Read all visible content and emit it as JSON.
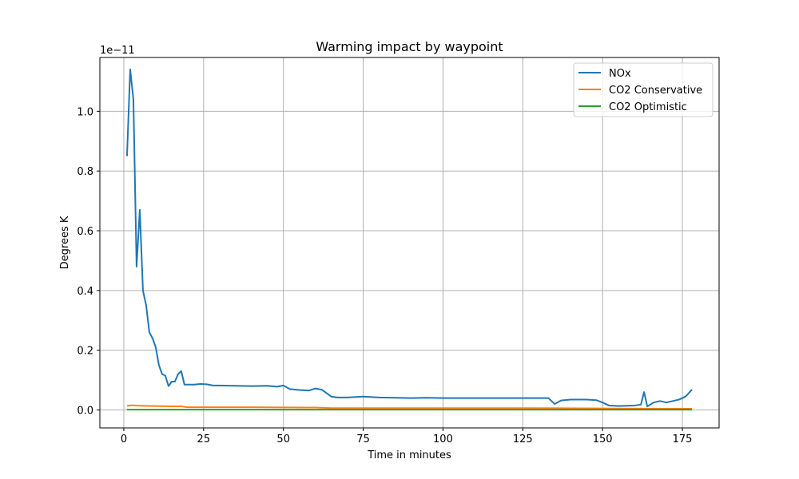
{
  "chart_data": {
    "type": "line",
    "title": "Warming impact by waypoint",
    "xlabel": "Time in minutes",
    "ylabel": "Degrees K",
    "offset_text": "1e−11",
    "xlim": [
      -7.5,
      186.5
    ],
    "ylim": [
      -6e-13,
      1.18e-11
    ],
    "xticks": [
      0,
      25,
      50,
      75,
      100,
      125,
      150,
      175
    ],
    "xtick_labels": [
      "0",
      "25",
      "50",
      "75",
      "100",
      "125",
      "150",
      "175"
    ],
    "yticks": [
      0.0,
      2e-12,
      4e-12,
      6e-12,
      8e-12,
      1e-11
    ],
    "ytick_labels": [
      "0.0",
      "0.2",
      "0.4",
      "0.6",
      "0.8",
      "1.0"
    ],
    "grid": true,
    "legend_position": "top-right",
    "series": [
      {
        "name": "NOx",
        "color": "#1f77b4",
        "x": [
          1,
          2,
          3,
          4,
          5,
          6,
          7,
          8,
          9,
          10,
          11,
          12,
          13,
          14,
          15,
          16,
          17,
          18,
          19,
          20,
          22,
          24,
          26,
          28,
          30,
          35,
          40,
          45,
          48,
          50,
          52,
          55,
          58,
          60,
          62,
          65,
          67,
          70,
          75,
          80,
          85,
          90,
          95,
          100,
          105,
          110,
          115,
          120,
          125,
          130,
          133,
          135,
          137,
          140,
          145,
          148,
          150,
          152,
          155,
          160,
          162,
          163,
          164,
          166,
          168,
          170,
          172,
          174,
          176,
          178
        ],
        "y": [
          8.5e-12,
          1.14e-11,
          1.04e-11,
          4.8e-12,
          6.7e-12,
          4e-12,
          3.5e-12,
          2.6e-12,
          2.4e-12,
          2.1e-12,
          1.5e-12,
          1.2e-12,
          1.15e-12,
          8e-13,
          9.5e-13,
          9.5e-13,
          1.2e-12,
          1.3e-12,
          8.5e-13,
          8.5e-13,
          8.5e-13,
          8.7e-13,
          8.6e-13,
          8.2e-13,
          8.2e-13,
          8.1e-13,
          8e-13,
          8.1e-13,
          7.8e-13,
          8.2e-13,
          7e-13,
          6.7e-13,
          6.5e-13,
          7.2e-13,
          6.8e-13,
          4.5e-13,
          4.2e-13,
          4.2e-13,
          4.5e-13,
          4.2e-13,
          4.1e-13,
          4e-13,
          4.1e-13,
          4e-13,
          4e-13,
          4e-13,
          4e-13,
          4e-13,
          4e-13,
          4e-13,
          4e-13,
          2e-13,
          3.2e-13,
          3.5e-13,
          3.5e-13,
          3.3e-13,
          2.5e-13,
          1.5e-13,
          1.3e-13,
          1.5e-13,
          1.8e-13,
          6e-13,
          1.2e-13,
          2.5e-13,
          3e-13,
          2.5e-13,
          3e-13,
          3.5e-13,
          4.5e-13,
          6.8e-13
        ]
      },
      {
        "name": "CO2 Conservative",
        "color": "#ff7f0e",
        "x": [
          1,
          3,
          5,
          10,
          15,
          18,
          20,
          40,
          60,
          65,
          80,
          100,
          130,
          150,
          178
        ],
        "y": [
          1.4e-13,
          1.6e-13,
          1.4e-13,
          1.3e-13,
          1.2e-13,
          1.2e-13,
          9e-14,
          9e-14,
          8e-14,
          6e-14,
          6e-14,
          6e-14,
          6e-14,
          5e-14,
          4e-14
        ]
      },
      {
        "name": "CO2 Optimistic",
        "color": "#2ca02c",
        "x": [
          1,
          50,
          100,
          150,
          178
        ],
        "y": [
          1e-14,
          1e-14,
          1e-14,
          1e-14,
          1e-14
        ]
      }
    ]
  }
}
